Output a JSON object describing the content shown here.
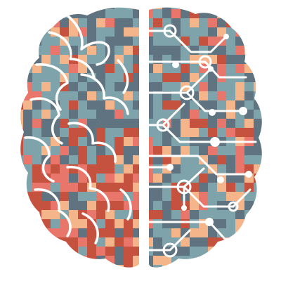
{
  "illustration": {
    "subject": "brain-half-anatomy-half-circuit-icon",
    "palette": {
      "background": "#ffffff",
      "slate": "#5f7380",
      "teal": "#7fa3aa",
      "sand": "#f4b58a",
      "coral": "#e9766a",
      "rust": "#c5523f",
      "line": "#ffffff"
    }
  }
}
